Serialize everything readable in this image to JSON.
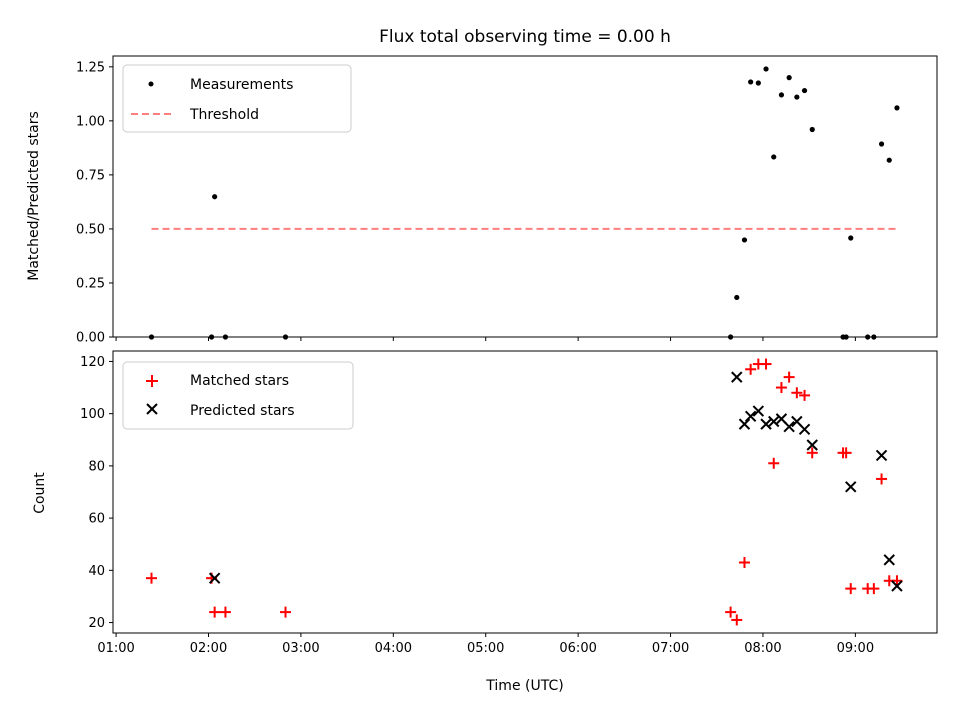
{
  "chart_data": [
    {
      "type": "scatter",
      "title": "Flux total observing time = 0.00 h",
      "xlabel": "",
      "ylabel": "Matched/Predicted stars",
      "ylim": [
        0,
        1.3
      ],
      "xlim": [
        "00:58",
        "09:53"
      ],
      "yticks": [
        "0.00",
        "0.25",
        "0.50",
        "0.75",
        "1.00",
        "1.25"
      ],
      "legend_position": "top-left",
      "series": [
        {
          "name": "Measurements",
          "color": "#000000",
          "marker": "dot",
          "points": [
            {
              "x": "01:23",
              "y": 0.0
            },
            {
              "x": "02:02",
              "y": 0.0
            },
            {
              "x": "02:04",
              "y": 0.649
            },
            {
              "x": "02:11",
              "y": 0.0
            },
            {
              "x": "02:50",
              "y": 0.0
            },
            {
              "x": "07:39",
              "y": 0.0
            },
            {
              "x": "07:43",
              "y": 0.183
            },
            {
              "x": "07:48",
              "y": 0.449
            },
            {
              "x": "07:52",
              "y": 1.18
            },
            {
              "x": "07:57",
              "y": 1.175
            },
            {
              "x": "08:02",
              "y": 1.24
            },
            {
              "x": "08:07",
              "y": 0.833
            },
            {
              "x": "08:12",
              "y": 1.12
            },
            {
              "x": "08:17",
              "y": 1.2
            },
            {
              "x": "08:22",
              "y": 1.11
            },
            {
              "x": "08:27",
              "y": 1.14
            },
            {
              "x": "08:32",
              "y": 0.96
            },
            {
              "x": "08:52",
              "y": 0.0
            },
            {
              "x": "08:54",
              "y": 0.0
            },
            {
              "x": "08:57",
              "y": 0.458
            },
            {
              "x": "09:08",
              "y": 0.0
            },
            {
              "x": "09:12",
              "y": 0.0
            },
            {
              "x": "09:17",
              "y": 0.893
            },
            {
              "x": "09:22",
              "y": 0.818
            },
            {
              "x": "09:27",
              "y": 1.06
            }
          ]
        },
        {
          "name": "Threshold",
          "color": "#ff7f7f",
          "style": "dashed",
          "points": [
            {
              "x": "01:23",
              "y": 0.5
            },
            {
              "x": "09:27",
              "y": 0.5
            }
          ]
        }
      ]
    },
    {
      "type": "scatter",
      "title": "",
      "xlabel": "Time (UTC)",
      "ylabel": "Count",
      "ylim": [
        16,
        124
      ],
      "xlim": [
        "00:58",
        "09:53"
      ],
      "yticks": [
        "20",
        "40",
        "60",
        "80",
        "100",
        "120"
      ],
      "xticks": [
        "01:00",
        "02:00",
        "03:00",
        "04:00",
        "05:00",
        "06:00",
        "07:00",
        "08:00",
        "09:00"
      ],
      "legend_position": "top-left",
      "series": [
        {
          "name": "Matched stars",
          "color": "#ff0000",
          "marker": "plus",
          "points": [
            {
              "x": "01:23",
              "y": 37
            },
            {
              "x": "02:02",
              "y": 37
            },
            {
              "x": "02:04",
              "y": 24
            },
            {
              "x": "02:11",
              "y": 24
            },
            {
              "x": "02:50",
              "y": 24
            },
            {
              "x": "07:39",
              "y": 24
            },
            {
              "x": "07:43",
              "y": 21
            },
            {
              "x": "07:48",
              "y": 43
            },
            {
              "x": "07:52",
              "y": 117
            },
            {
              "x": "07:57",
              "y": 119
            },
            {
              "x": "08:02",
              "y": 119
            },
            {
              "x": "08:07",
              "y": 81
            },
            {
              "x": "08:12",
              "y": 110
            },
            {
              "x": "08:17",
              "y": 114
            },
            {
              "x": "08:22",
              "y": 108
            },
            {
              "x": "08:27",
              "y": 107
            },
            {
              "x": "08:32",
              "y": 85
            },
            {
              "x": "08:52",
              "y": 85
            },
            {
              "x": "08:54",
              "y": 85
            },
            {
              "x": "08:57",
              "y": 33
            },
            {
              "x": "09:08",
              "y": 33
            },
            {
              "x": "09:12",
              "y": 33
            },
            {
              "x": "09:17",
              "y": 75
            },
            {
              "x": "09:22",
              "y": 36
            },
            {
              "x": "09:27",
              "y": 36
            }
          ]
        },
        {
          "name": "Predicted stars",
          "color": "#000000",
          "marker": "x",
          "points": [
            {
              "x": "02:04",
              "y": 37
            },
            {
              "x": "07:43",
              "y": 114
            },
            {
              "x": "07:48",
              "y": 96
            },
            {
              "x": "07:52",
              "y": 99
            },
            {
              "x": "07:57",
              "y": 101
            },
            {
              "x": "08:02",
              "y": 96
            },
            {
              "x": "08:07",
              "y": 97
            },
            {
              "x": "08:12",
              "y": 98
            },
            {
              "x": "08:17",
              "y": 95
            },
            {
              "x": "08:22",
              "y": 97
            },
            {
              "x": "08:27",
              "y": 94
            },
            {
              "x": "08:32",
              "y": 88
            },
            {
              "x": "08:57",
              "y": 72
            },
            {
              "x": "09:17",
              "y": 84
            },
            {
              "x": "09:22",
              "y": 44
            },
            {
              "x": "09:27",
              "y": 34
            }
          ]
        }
      ]
    }
  ]
}
